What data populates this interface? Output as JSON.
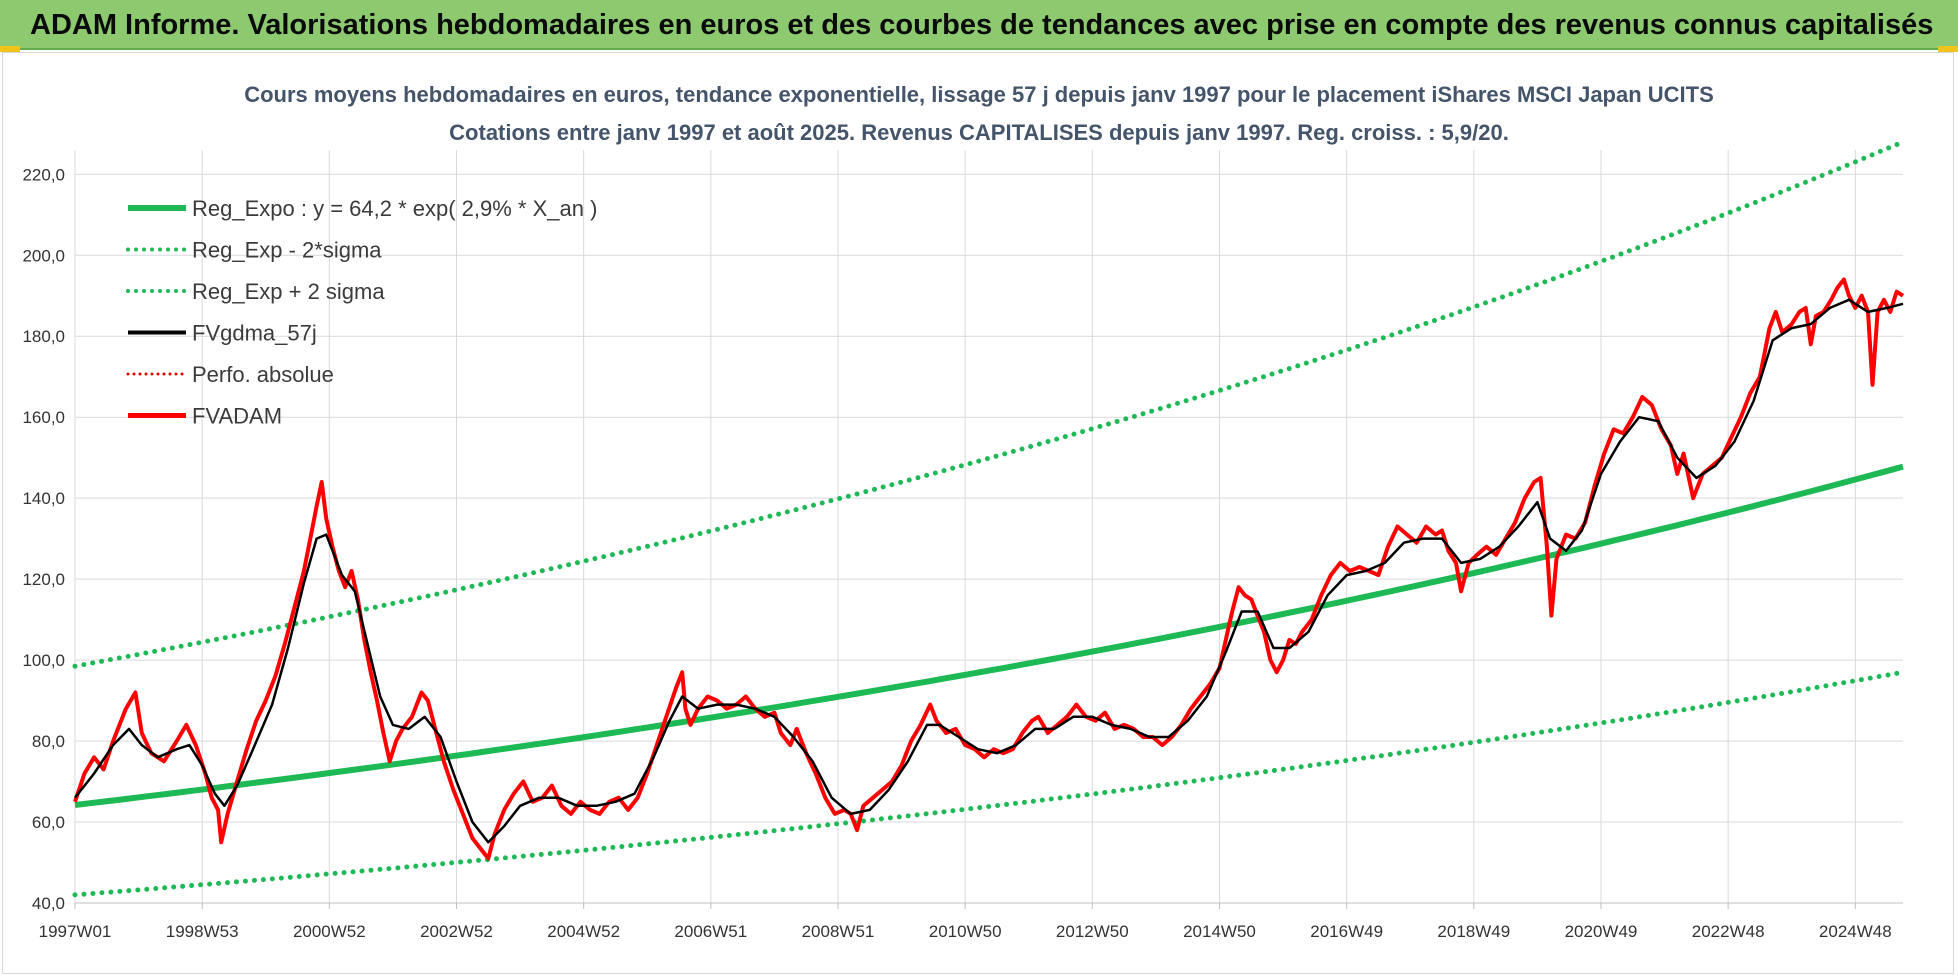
{
  "banner": {
    "title": "ADAM Informe. Valorisations hebdomadaires en euros et des courbes de tendances avec prise en compte des revenus connus capitalisés"
  },
  "colors": {
    "banner": "#8cc96f",
    "trend": "#1db954",
    "sigma": "#1db954",
    "gdma": "#000000",
    "perfo": "#e00000",
    "fvadam": "#ff0000",
    "grid": "#d9d9d9",
    "subtitle": "#44546a"
  },
  "chart_data": {
    "type": "line",
    "title_lines": [
      "Cours moyens hebdomadaires en euros, tendance exponentielle, lissage 57 j depuis janv 1997 pour le placement iShares MSCI Japan UCITS",
      "Cotations entre janv 1997 et août 2025. Revenus CAPITALISES depuis janv 1997. Reg. croiss. : 5,9/20."
    ],
    "x_tick_labels": [
      "1997W01",
      "1998W53",
      "2000W52",
      "2002W52",
      "2004W52",
      "2006W51",
      "2008W51",
      "2010W50",
      "2012W50",
      "2014W50",
      "2016W49",
      "2018W49",
      "2020W49",
      "2022W48",
      "2024W48"
    ],
    "x_tick_years": [
      1997.0,
      1999.0,
      2001.0,
      2003.0,
      2005.0,
      2007.0,
      2009.0,
      2011.0,
      2013.0,
      2015.0,
      2017.0,
      2019.0,
      2021.0,
      2023.0,
      2025.0
    ],
    "x_range": [
      1997.0,
      2025.75
    ],
    "y_ticks": [
      "40,0",
      "60,0",
      "80,0",
      "100,0",
      "120,0",
      "140,0",
      "160,0",
      "180,0",
      "200,0",
      "220,0"
    ],
    "y_tick_values": [
      40,
      60,
      80,
      100,
      120,
      140,
      160,
      180,
      200,
      220
    ],
    "ylim": [
      40,
      226
    ],
    "grid": true,
    "legend_position": "top-left",
    "legend": [
      {
        "label": "Reg_Expo : y = 64,2 * exp( 2,9% *  X_an )",
        "style": "thick"
      },
      {
        "label": "Reg_Exp - 2*sigma",
        "style": "dotted-green"
      },
      {
        "label": "Reg_Exp + 2 sigma",
        "style": "dotted-green"
      },
      {
        "label": "FVgdma_57j",
        "style": "black"
      },
      {
        "label": "Perfo. absolue",
        "style": "dotted-red"
      },
      {
        "label": "FVADAM",
        "style": "red"
      }
    ],
    "trend": {
      "base": 64.2,
      "rate": 0.029,
      "start_year": 1997.0
    },
    "lower_band": {
      "start": 42,
      "end": 97
    },
    "upper_band": {
      "start": 98.5,
      "end": 228
    },
    "fvadam_points": [
      [
        1997.0,
        65
      ],
      [
        1997.15,
        72
      ],
      [
        1997.3,
        76
      ],
      [
        1997.45,
        73
      ],
      [
        1997.6,
        80
      ],
      [
        1997.8,
        88
      ],
      [
        1997.95,
        92
      ],
      [
        1998.05,
        82
      ],
      [
        1998.2,
        77
      ],
      [
        1998.4,
        75
      ],
      [
        1998.6,
        80
      ],
      [
        1998.75,
        84
      ],
      [
        1998.9,
        79
      ],
      [
        1999.05,
        72
      ],
      [
        1999.15,
        66
      ],
      [
        1999.25,
        63
      ],
      [
        1999.3,
        55
      ],
      [
        1999.4,
        62
      ],
      [
        1999.55,
        70
      ],
      [
        1999.7,
        78
      ],
      [
        1999.85,
        85
      ],
      [
        2000.0,
        90
      ],
      [
        2000.15,
        96
      ],
      [
        2000.3,
        104
      ],
      [
        2000.45,
        113
      ],
      [
        2000.6,
        122
      ],
      [
        2000.7,
        130
      ],
      [
        2000.8,
        138
      ],
      [
        2000.88,
        144
      ],
      [
        2000.95,
        135
      ],
      [
        2001.05,
        128
      ],
      [
        2001.15,
        122
      ],
      [
        2001.25,
        118
      ],
      [
        2001.35,
        122
      ],
      [
        2001.45,
        115
      ],
      [
        2001.55,
        105
      ],
      [
        2001.65,
        97
      ],
      [
        2001.75,
        90
      ],
      [
        2001.85,
        82
      ],
      [
        2001.95,
        75
      ],
      [
        2002.05,
        80
      ],
      [
        2002.15,
        83
      ],
      [
        2002.3,
        86
      ],
      [
        2002.45,
        92
      ],
      [
        2002.55,
        90
      ],
      [
        2002.65,
        84
      ],
      [
        2002.8,
        75
      ],
      [
        2002.95,
        68
      ],
      [
        2003.1,
        62
      ],
      [
        2003.25,
        56
      ],
      [
        2003.4,
        53
      ],
      [
        2003.5,
        51
      ],
      [
        2003.6,
        57
      ],
      [
        2003.75,
        63
      ],
      [
        2003.9,
        67
      ],
      [
        2004.05,
        70
      ],
      [
        2004.2,
        65
      ],
      [
        2004.35,
        66
      ],
      [
        2004.5,
        69
      ],
      [
        2004.65,
        64
      ],
      [
        2004.8,
        62
      ],
      [
        2004.95,
        65
      ],
      [
        2005.1,
        63
      ],
      [
        2005.25,
        62
      ],
      [
        2005.4,
        65
      ],
      [
        2005.55,
        66
      ],
      [
        2005.7,
        63
      ],
      [
        2005.85,
        66
      ],
      [
        2006.0,
        72
      ],
      [
        2006.15,
        79
      ],
      [
        2006.3,
        86
      ],
      [
        2006.45,
        93
      ],
      [
        2006.55,
        97
      ],
      [
        2006.6,
        88
      ],
      [
        2006.68,
        84
      ],
      [
        2006.8,
        88
      ],
      [
        2006.95,
        91
      ],
      [
        2007.1,
        90
      ],
      [
        2007.25,
        88
      ],
      [
        2007.4,
        89
      ],
      [
        2007.55,
        91
      ],
      [
        2007.7,
        88
      ],
      [
        2007.85,
        86
      ],
      [
        2008.0,
        87
      ],
      [
        2008.1,
        82
      ],
      [
        2008.25,
        79
      ],
      [
        2008.35,
        83
      ],
      [
        2008.5,
        77
      ],
      [
        2008.65,
        72
      ],
      [
        2008.8,
        66
      ],
      [
        2008.95,
        62
      ],
      [
        2009.1,
        63
      ],
      [
        2009.2,
        62
      ],
      [
        2009.3,
        58
      ],
      [
        2009.4,
        64
      ],
      [
        2009.55,
        66
      ],
      [
        2009.7,
        68
      ],
      [
        2009.85,
        70
      ],
      [
        2010.0,
        74
      ],
      [
        2010.15,
        80
      ],
      [
        2010.3,
        84
      ],
      [
        2010.45,
        89
      ],
      [
        2010.55,
        85
      ],
      [
        2010.7,
        82
      ],
      [
        2010.85,
        83
      ],
      [
        2011.0,
        79
      ],
      [
        2011.15,
        78
      ],
      [
        2011.3,
        76
      ],
      [
        2011.45,
        78
      ],
      [
        2011.6,
        77
      ],
      [
        2011.75,
        78
      ],
      [
        2011.9,
        82
      ],
      [
        2012.05,
        85
      ],
      [
        2012.15,
        86
      ],
      [
        2012.3,
        82
      ],
      [
        2012.45,
        84
      ],
      [
        2012.6,
        86
      ],
      [
        2012.75,
        89
      ],
      [
        2012.9,
        86
      ],
      [
        2013.05,
        85
      ],
      [
        2013.2,
        87
      ],
      [
        2013.35,
        83
      ],
      [
        2013.5,
        84
      ],
      [
        2013.65,
        83
      ],
      [
        2013.8,
        81
      ],
      [
        2013.95,
        81
      ],
      [
        2014.1,
        79
      ],
      [
        2014.25,
        81
      ],
      [
        2014.4,
        84
      ],
      [
        2014.55,
        88
      ],
      [
        2014.7,
        91
      ],
      [
        2014.85,
        94
      ],
      [
        2015.0,
        98
      ],
      [
        2015.1,
        105
      ],
      [
        2015.2,
        112
      ],
      [
        2015.3,
        118
      ],
      [
        2015.4,
        116
      ],
      [
        2015.5,
        115
      ],
      [
        2015.6,
        111
      ],
      [
        2015.7,
        107
      ],
      [
        2015.8,
        100
      ],
      [
        2015.9,
        97
      ],
      [
        2016.0,
        100
      ],
      [
        2016.1,
        105
      ],
      [
        2016.2,
        104
      ],
      [
        2016.3,
        107
      ],
      [
        2016.45,
        110
      ],
      [
        2016.6,
        116
      ],
      [
        2016.75,
        121
      ],
      [
        2016.9,
        124
      ],
      [
        2017.05,
        122
      ],
      [
        2017.2,
        123
      ],
      [
        2017.35,
        122
      ],
      [
        2017.5,
        121
      ],
      [
        2017.65,
        128
      ],
      [
        2017.8,
        133
      ],
      [
        2017.95,
        131
      ],
      [
        2018.1,
        129
      ],
      [
        2018.25,
        133
      ],
      [
        2018.4,
        131
      ],
      [
        2018.5,
        132
      ],
      [
        2018.6,
        127
      ],
      [
        2018.72,
        124
      ],
      [
        2018.8,
        117
      ],
      [
        2018.92,
        124
      ],
      [
        2019.05,
        126
      ],
      [
        2019.2,
        128
      ],
      [
        2019.35,
        126
      ],
      [
        2019.5,
        130
      ],
      [
        2019.65,
        134
      ],
      [
        2019.8,
        140
      ],
      [
        2019.95,
        144
      ],
      [
        2020.05,
        145
      ],
      [
        2020.15,
        128
      ],
      [
        2020.22,
        111
      ],
      [
        2020.3,
        125
      ],
      [
        2020.45,
        131
      ],
      [
        2020.6,
        130
      ],
      [
        2020.75,
        134
      ],
      [
        2020.9,
        143
      ],
      [
        2021.05,
        151
      ],
      [
        2021.2,
        157
      ],
      [
        2021.35,
        156
      ],
      [
        2021.5,
        160
      ],
      [
        2021.65,
        165
      ],
      [
        2021.8,
        163
      ],
      [
        2021.95,
        157
      ],
      [
        2022.1,
        153
      ],
      [
        2022.2,
        146
      ],
      [
        2022.3,
        151
      ],
      [
        2022.45,
        140
      ],
      [
        2022.6,
        146
      ],
      [
        2022.75,
        148
      ],
      [
        2022.9,
        150
      ],
      [
        2023.05,
        155
      ],
      [
        2023.2,
        160
      ],
      [
        2023.35,
        166
      ],
      [
        2023.5,
        170
      ],
      [
        2023.65,
        182
      ],
      [
        2023.75,
        186
      ],
      [
        2023.85,
        181
      ],
      [
        2024.0,
        183
      ],
      [
        2024.12,
        186
      ],
      [
        2024.22,
        187
      ],
      [
        2024.3,
        178
      ],
      [
        2024.38,
        185
      ],
      [
        2024.5,
        186
      ],
      [
        2024.62,
        189
      ],
      [
        2024.72,
        192
      ],
      [
        2024.82,
        194
      ],
      [
        2024.9,
        190
      ],
      [
        2025.0,
        187
      ],
      [
        2025.1,
        190
      ],
      [
        2025.2,
        186
      ],
      [
        2025.27,
        168
      ],
      [
        2025.35,
        186
      ],
      [
        2025.45,
        189
      ],
      [
        2025.55,
        186
      ],
      [
        2025.65,
        191
      ],
      [
        2025.75,
        190
      ]
    ],
    "gdma_points": [
      [
        1997.0,
        66
      ],
      [
        1997.3,
        72
      ],
      [
        1997.6,
        79
      ],
      [
        1997.85,
        83
      ],
      [
        1998.05,
        79
      ],
      [
        1998.3,
        76
      ],
      [
        1998.6,
        78
      ],
      [
        1998.8,
        79
      ],
      [
        1999.0,
        74
      ],
      [
        1999.2,
        67
      ],
      [
        1999.35,
        64
      ],
      [
        1999.55,
        69
      ],
      [
        1999.8,
        78
      ],
      [
        2000.1,
        89
      ],
      [
        2000.35,
        103
      ],
      [
        2000.6,
        119
      ],
      [
        2000.8,
        130
      ],
      [
        2000.95,
        131
      ],
      [
        2001.2,
        121
      ],
      [
        2001.4,
        117
      ],
      [
        2001.6,
        104
      ],
      [
        2001.8,
        91
      ],
      [
        2002.0,
        84
      ],
      [
        2002.25,
        83
      ],
      [
        2002.5,
        86
      ],
      [
        2002.75,
        81
      ],
      [
        2003.0,
        70
      ],
      [
        2003.25,
        60
      ],
      [
        2003.5,
        55
      ],
      [
        2003.75,
        59
      ],
      [
        2004.0,
        64
      ],
      [
        2004.3,
        66
      ],
      [
        2004.6,
        66
      ],
      [
        2004.9,
        64
      ],
      [
        2005.2,
        64
      ],
      [
        2005.5,
        65
      ],
      [
        2005.8,
        67
      ],
      [
        2006.1,
        76
      ],
      [
        2006.35,
        85
      ],
      [
        2006.55,
        91
      ],
      [
        2006.8,
        88
      ],
      [
        2007.1,
        89
      ],
      [
        2007.4,
        89
      ],
      [
        2007.7,
        88
      ],
      [
        2008.0,
        86
      ],
      [
        2008.3,
        81
      ],
      [
        2008.6,
        75
      ],
      [
        2008.9,
        66
      ],
      [
        2009.2,
        62
      ],
      [
        2009.5,
        63
      ],
      [
        2009.8,
        68
      ],
      [
        2010.1,
        75
      ],
      [
        2010.4,
        84
      ],
      [
        2010.6,
        84
      ],
      [
        2010.9,
        81
      ],
      [
        2011.2,
        78
      ],
      [
        2011.5,
        77
      ],
      [
        2011.8,
        79
      ],
      [
        2012.1,
        83
      ],
      [
        2012.4,
        83
      ],
      [
        2012.7,
        86
      ],
      [
        2013.0,
        86
      ],
      [
        2013.3,
        84
      ],
      [
        2013.6,
        83
      ],
      [
        2013.9,
        81
      ],
      [
        2014.2,
        81
      ],
      [
        2014.5,
        85
      ],
      [
        2014.8,
        91
      ],
      [
        2015.1,
        102
      ],
      [
        2015.35,
        112
      ],
      [
        2015.6,
        112
      ],
      [
        2015.85,
        103
      ],
      [
        2016.1,
        103
      ],
      [
        2016.4,
        107
      ],
      [
        2016.7,
        116
      ],
      [
        2017.0,
        121
      ],
      [
        2017.3,
        122
      ],
      [
        2017.6,
        124
      ],
      [
        2017.9,
        129
      ],
      [
        2018.2,
        130
      ],
      [
        2018.5,
        130
      ],
      [
        2018.8,
        124
      ],
      [
        2019.1,
        125
      ],
      [
        2019.4,
        128
      ],
      [
        2019.7,
        133
      ],
      [
        2020.0,
        139
      ],
      [
        2020.2,
        130
      ],
      [
        2020.45,
        127
      ],
      [
        2020.7,
        132
      ],
      [
        2021.0,
        146
      ],
      [
        2021.3,
        154
      ],
      [
        2021.6,
        160
      ],
      [
        2021.9,
        159
      ],
      [
        2022.2,
        150
      ],
      [
        2022.5,
        145
      ],
      [
        2022.8,
        148
      ],
      [
        2023.1,
        154
      ],
      [
        2023.4,
        164
      ],
      [
        2023.7,
        179
      ],
      [
        2024.0,
        182
      ],
      [
        2024.3,
        183
      ],
      [
        2024.6,
        187
      ],
      [
        2024.9,
        189
      ],
      [
        2025.2,
        186
      ],
      [
        2025.5,
        187
      ],
      [
        2025.75,
        188
      ]
    ]
  }
}
